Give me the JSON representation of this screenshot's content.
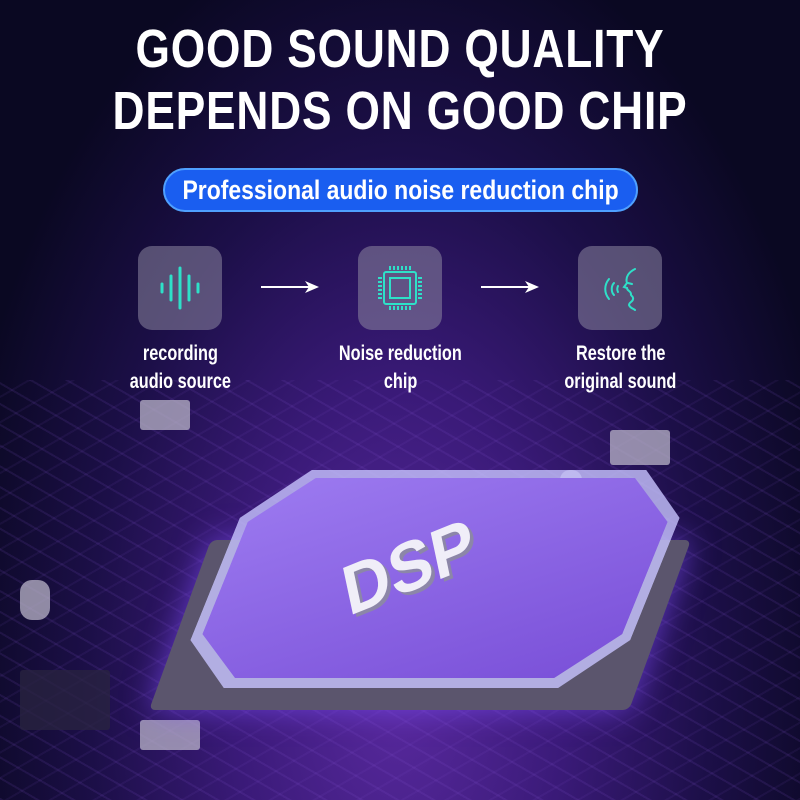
{
  "headline": {
    "line1": "GOOD SOUND QUALITY",
    "line2": "DEPENDS ON GOOD CHIP"
  },
  "subtitle": "Professional audio noise reduction chip",
  "steps": [
    {
      "icon": "sound-wave-icon",
      "line1": "recording",
      "line2": "audio source"
    },
    {
      "icon": "chip-icon",
      "line1": "Noise reduction",
      "line2": "chip"
    },
    {
      "icon": "speaking-face-icon",
      "line1": "Restore the",
      "line2": "original sound"
    }
  ],
  "chip_label": "DSP",
  "colors": {
    "accent": "#1a5ef0",
    "icon": "#2ee0c8",
    "chip": "#8a64e8"
  }
}
